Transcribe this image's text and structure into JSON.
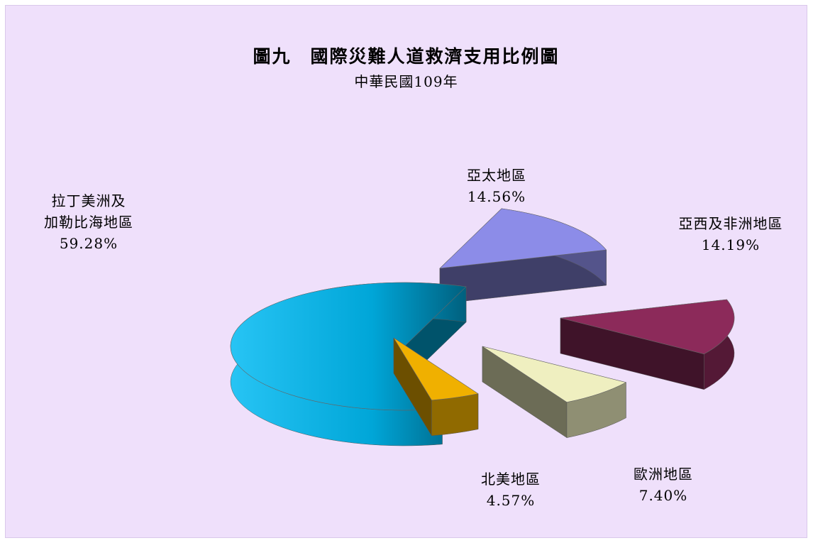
{
  "chart_data": {
    "type": "pie",
    "title": "圖九　國際災難人道救濟支用比例圖",
    "subtitle": "中華民國109年",
    "slices": [
      {
        "label": "拉丁美洲及加勒比海地區",
        "label_lines": [
          "拉丁美洲及",
          "加勒比海地區"
        ],
        "value": 59.28,
        "value_text": "59.28%",
        "color": "#00b8ee"
      },
      {
        "label": "亞太地區",
        "label_lines": [
          "亞太地區"
        ],
        "value": 14.56,
        "value_text": "14.56%",
        "color": "#8c8ce8"
      },
      {
        "label": "亞西及非洲地區",
        "label_lines": [
          "亞西及非洲地區"
        ],
        "value": 14.19,
        "value_text": "14.19%",
        "color": "#8c2a5a"
      },
      {
        "label": "歐洲地區",
        "label_lines": [
          "歐洲地區"
        ],
        "value": 7.4,
        "value_text": "7.40%",
        "color": "#efefc0"
      },
      {
        "label": "北美地區",
        "label_lines": [
          "北美地區"
        ],
        "value": 4.57,
        "value_text": "4.57%",
        "color": "#f0b000"
      }
    ],
    "style": "3d-exploded-pie"
  }
}
